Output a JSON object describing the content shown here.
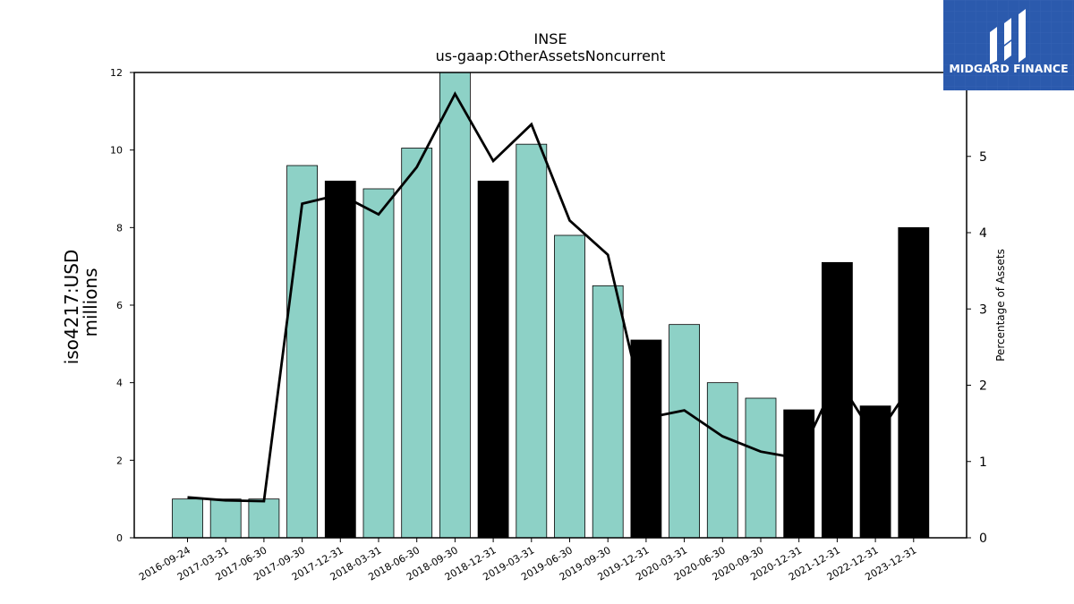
{
  "chart_data": {
    "type": "bar",
    "title": "INSE",
    "subtitle": "us-gaap:OtherAssetsNoncurrent",
    "ylabel": "iso4217:USD",
    "ylabel_unit": "millions",
    "y2label": "Percentage of Assets",
    "ylim": [
      0,
      12
    ],
    "y2lim": [
      0,
      6.1
    ],
    "yticks": [
      "0",
      "2",
      "4",
      "6",
      "8",
      "10",
      "12"
    ],
    "y2ticks": [
      "0",
      "1",
      "2",
      "3",
      "4",
      "5"
    ],
    "grid": false,
    "categories": [
      "2016-09-24",
      "2017-03-31",
      "2017-06-30",
      "2017-09-30",
      "2017-12-31",
      "2018-03-31",
      "2018-06-30",
      "2018-09-30",
      "2018-12-31",
      "2019-03-31",
      "2019-06-30",
      "2019-09-30",
      "2019-12-31",
      "2020-03-31",
      "2020-06-30",
      "2020-09-30",
      "2020-12-31",
      "2021-12-31",
      "2022-12-31",
      "2023-12-31"
    ],
    "series": [
      {
        "kind": "bar",
        "values": [
          1.0,
          1.0,
          1.0,
          9.6,
          9.2,
          9.0,
          10.05,
          12.0,
          9.2,
          10.15,
          7.8,
          6.5,
          5.1,
          5.5,
          4.0,
          3.6,
          3.3,
          7.1,
          3.4,
          8.0
        ],
        "annual": [
          false,
          false,
          false,
          false,
          true,
          false,
          false,
          false,
          true,
          false,
          false,
          false,
          true,
          false,
          false,
          false,
          true,
          true,
          true,
          true
        ]
      },
      {
        "kind": "line",
        "axis": "right",
        "values": [
          0.53,
          0.49,
          0.48,
          4.38,
          4.5,
          4.24,
          4.86,
          5.82,
          4.94,
          5.42,
          4.16,
          3.71,
          1.57,
          1.67,
          1.33,
          1.13,
          1.04,
          2.1,
          1.3,
          2.05
        ]
      }
    ],
    "colors": {
      "quarterly": "#8dd1c6",
      "annual": "#000000",
      "line": "#000000",
      "edge": "#000000"
    }
  },
  "logo": {
    "text": "MIDGARD FINANCE",
    "background": "#2b5aad"
  }
}
